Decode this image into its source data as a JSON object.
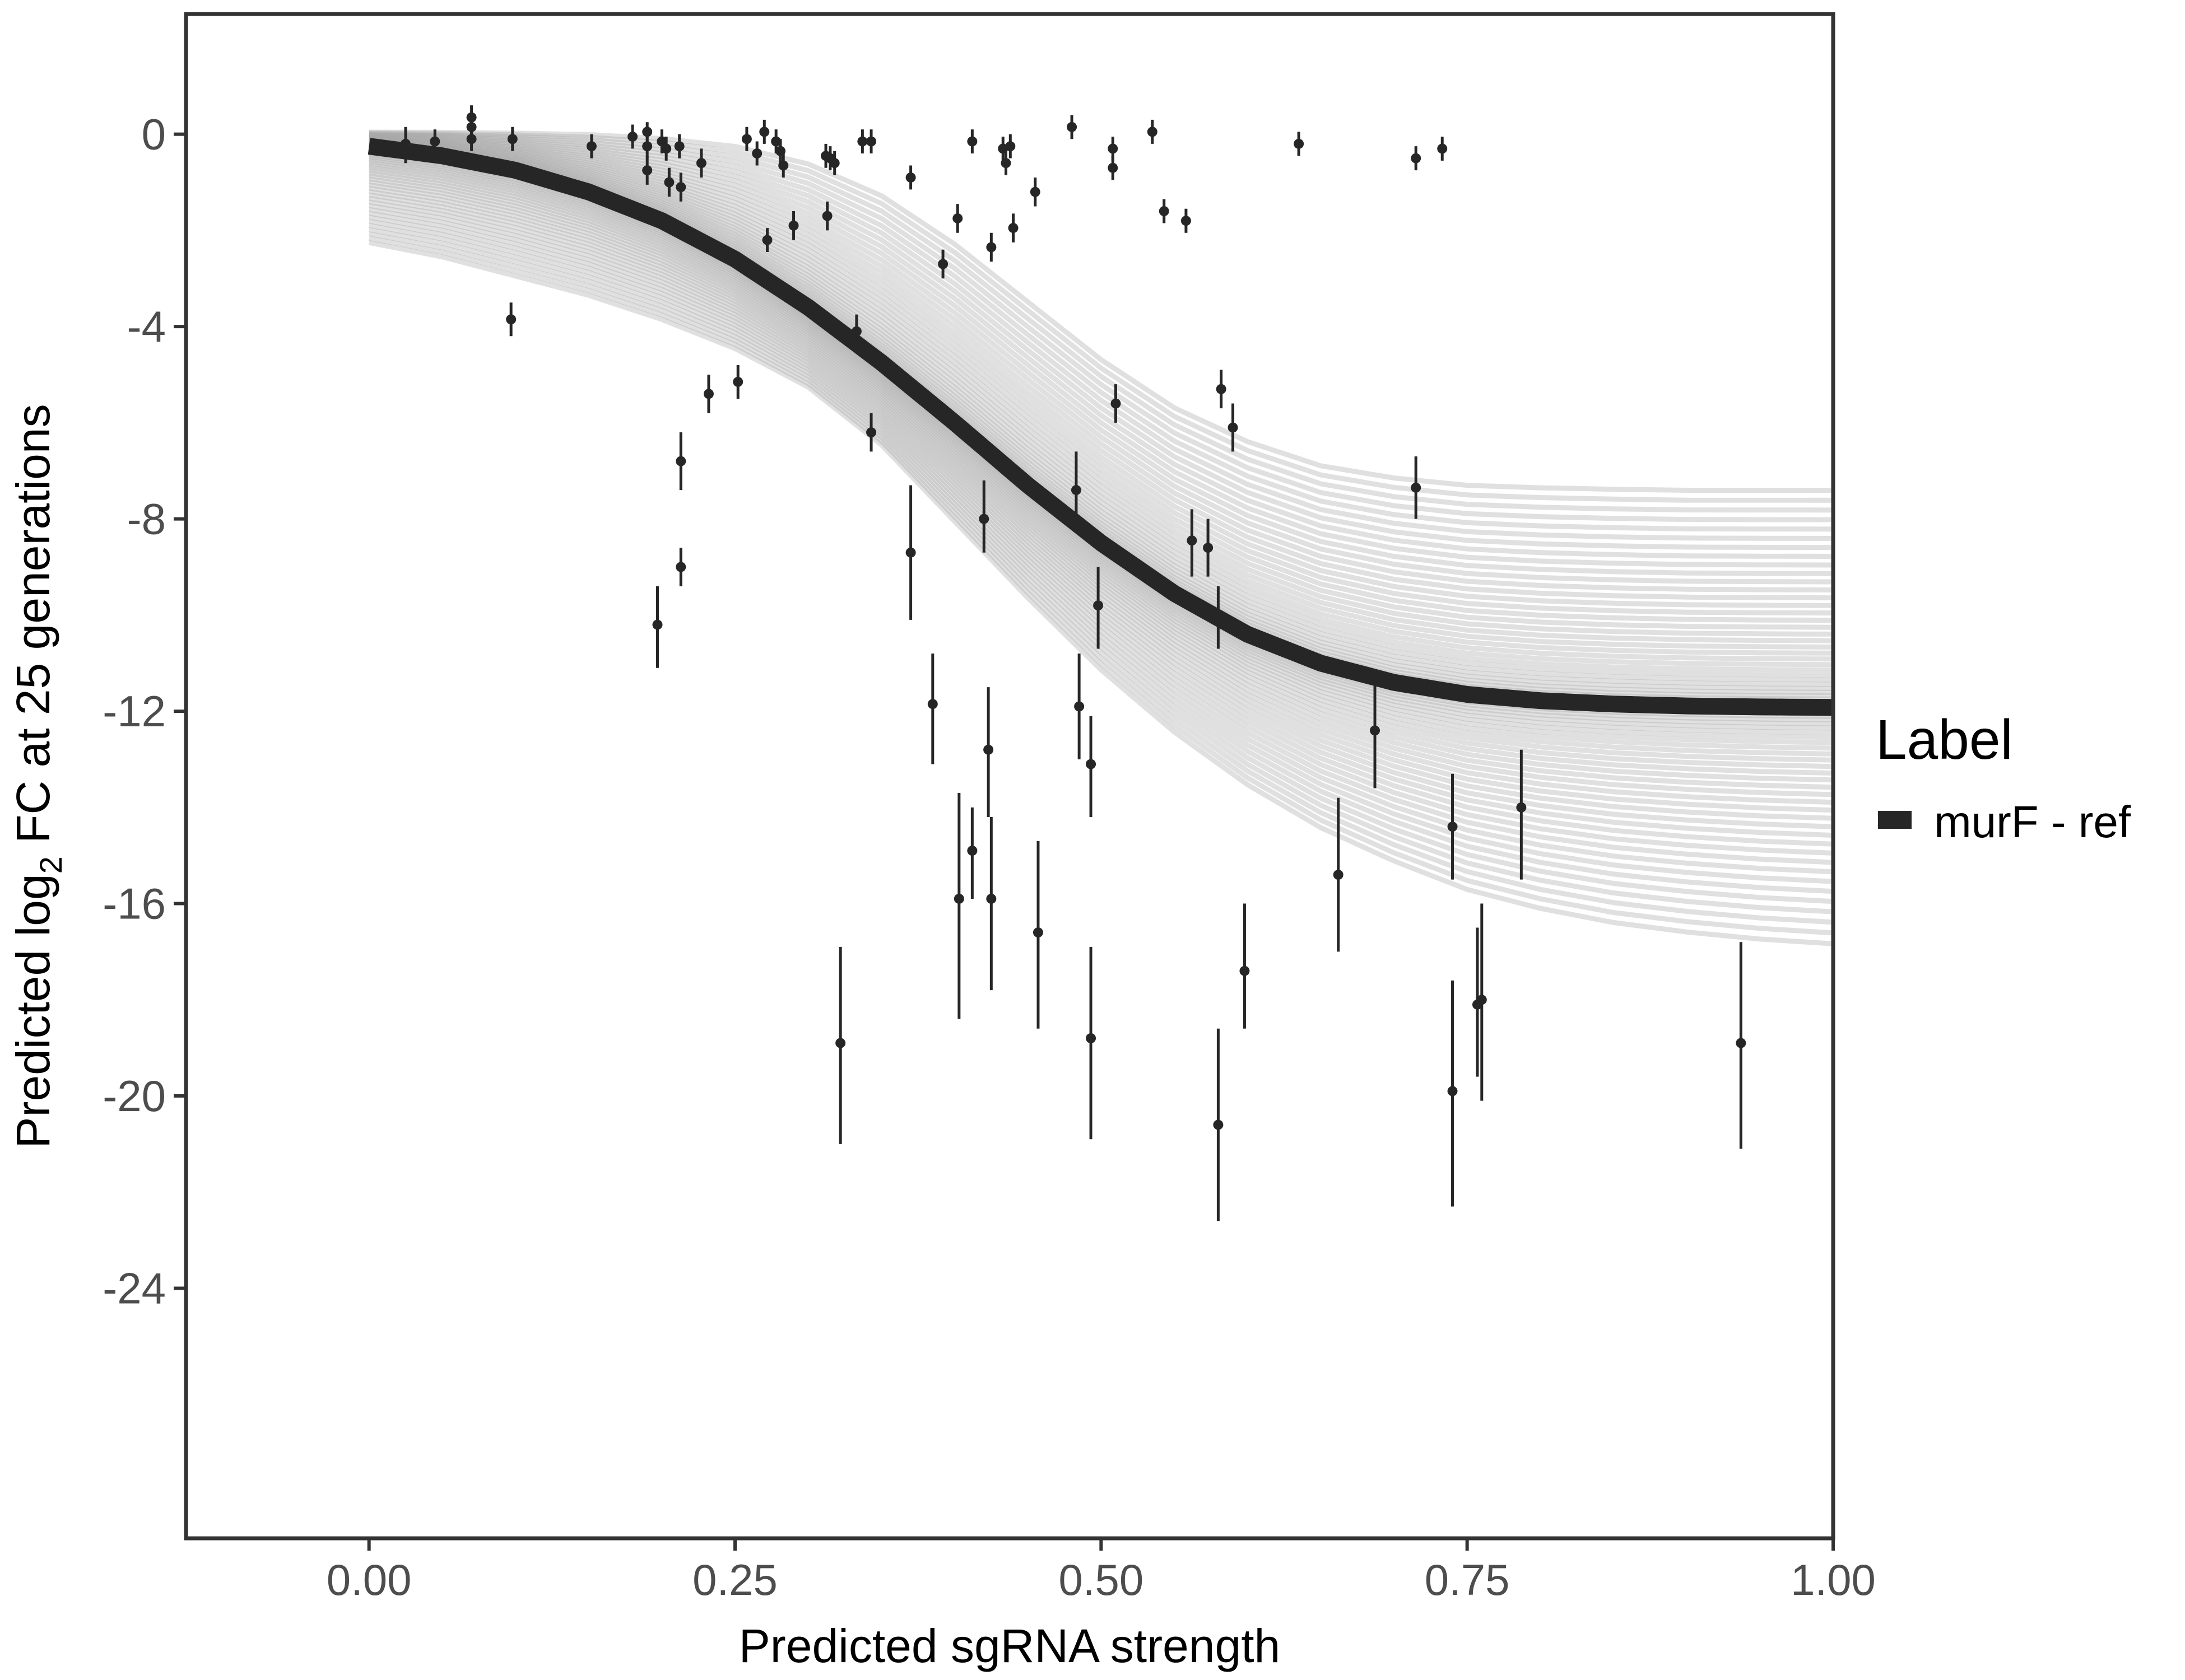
{
  "chart_data": {
    "type": "scatter",
    "xlabel": "Predicted sgRNA strength",
    "ylabel": {
      "prefix": "Predicted  log",
      "subscript": "2",
      "suffix": " FC at 25 generations"
    },
    "xlim": [
      -0.125,
      1.0
    ],
    "ylim": [
      -29.2,
      2.5
    ],
    "x_ticks": [
      0,
      0.25,
      0.5,
      0.75,
      1.0
    ],
    "x_tick_labels": [
      "0.00",
      "0.25",
      "0.50",
      "0.75",
      "1.00"
    ],
    "y_ticks": [
      0,
      -4,
      -8,
      -12,
      -16,
      -20,
      -24
    ],
    "y_tick_labels": [
      "0",
      "-4",
      "-8",
      "-12",
      "-16",
      "-20",
      "-24"
    ],
    "grid": false,
    "legend": {
      "title": "Label",
      "position": "right",
      "entries": [
        {
          "label": "murF - ref",
          "color": "#262626"
        }
      ]
    },
    "colors": {
      "fit": "#262626",
      "posterior": "#a6a6a6",
      "points": "#262626",
      "frame": "#333333"
    },
    "fit_curve": {
      "series": "murF - ref",
      "x": [
        0,
        0.05,
        0.1,
        0.15,
        0.2,
        0.25,
        0.3,
        0.35,
        0.4,
        0.45,
        0.5,
        0.55,
        0.6,
        0.65,
        0.7,
        0.75,
        0.8,
        0.85,
        0.9,
        0.95,
        1.0
      ],
      "y": [
        -0.25,
        -0.45,
        -0.75,
        -1.2,
        -1.8,
        -2.6,
        -3.6,
        -4.75,
        -6.0,
        -7.3,
        -8.5,
        -9.55,
        -10.4,
        -11.0,
        -11.4,
        -11.65,
        -11.78,
        -11.85,
        -11.89,
        -11.91,
        -11.92
      ]
    },
    "posterior_band": {
      "x": [
        0,
        0.05,
        0.1,
        0.15,
        0.2,
        0.25,
        0.3,
        0.35,
        0.4,
        0.45,
        0.5,
        0.55,
        0.6,
        0.65,
        0.7,
        0.75,
        0.8,
        0.85,
        0.9,
        0.95,
        1.0
      ],
      "upper": [
        0.05,
        0.05,
        0.04,
        0.02,
        -0.05,
        -0.2,
        -0.55,
        -1.2,
        -2.2,
        -3.4,
        -4.6,
        -5.6,
        -6.3,
        -6.8,
        -7.05,
        -7.2,
        -7.25,
        -7.28,
        -7.3,
        -7.3,
        -7.3
      ],
      "lower": [
        -2.3,
        -2.6,
        -3.0,
        -3.4,
        -3.9,
        -4.5,
        -5.3,
        -6.5,
        -8.1,
        -9.7,
        -11.2,
        -12.5,
        -13.6,
        -14.5,
        -15.2,
        -15.8,
        -16.2,
        -16.5,
        -16.7,
        -16.85,
        -16.95
      ]
    },
    "points": [
      {
        "x": 0.025,
        "y": -0.2,
        "lo": -0.6,
        "hi": 0.15
      },
      {
        "x": 0.045,
        "y": -0.15,
        "lo": -0.45,
        "hi": 0.1
      },
      {
        "x": 0.07,
        "y": 0.35,
        "lo": 0.05,
        "hi": 0.6
      },
      {
        "x": 0.07,
        "y": 0.15,
        "lo": -0.15,
        "hi": 0.4
      },
      {
        "x": 0.07,
        "y": -0.1,
        "lo": -0.35,
        "hi": 0.15
      },
      {
        "x": 0.098,
        "y": -0.1,
        "lo": -0.35,
        "hi": 0.15
      },
      {
        "x": 0.097,
        "y": -3.85,
        "lo": -4.2,
        "hi": -3.5
      },
      {
        "x": 0.152,
        "y": -0.25,
        "lo": -0.5,
        "hi": 0.0
      },
      {
        "x": 0.18,
        "y": -0.05,
        "lo": -0.3,
        "hi": 0.2
      },
      {
        "x": 0.19,
        "y": 0.05,
        "lo": -0.2,
        "hi": 0.25
      },
      {
        "x": 0.19,
        "y": -0.25,
        "lo": -0.5,
        "hi": 0.0
      },
      {
        "x": 0.19,
        "y": -0.75,
        "lo": -1.05,
        "hi": -0.45
      },
      {
        "x": 0.2,
        "y": -0.15,
        "lo": -0.4,
        "hi": 0.1
      },
      {
        "x": 0.203,
        "y": -0.3,
        "lo": -0.55,
        "hi": -0.05
      },
      {
        "x": 0.205,
        "y": -1.0,
        "lo": -1.3,
        "hi": -0.7
      },
      {
        "x": 0.212,
        "y": -0.25,
        "lo": -0.5,
        "hi": 0.0
      },
      {
        "x": 0.213,
        "y": -1.1,
        "lo": -1.4,
        "hi": -0.8
      },
      {
        "x": 0.227,
        "y": -0.6,
        "lo": -0.9,
        "hi": -0.3
      },
      {
        "x": 0.197,
        "y": -10.2,
        "lo": -11.1,
        "hi": -9.4
      },
      {
        "x": 0.213,
        "y": -6.8,
        "lo": -7.4,
        "hi": -6.2
      },
      {
        "x": 0.213,
        "y": -9.0,
        "lo": -9.4,
        "hi": -8.6
      },
      {
        "x": 0.232,
        "y": -5.4,
        "lo": -5.8,
        "hi": -5.0
      },
      {
        "x": 0.252,
        "y": -5.15,
        "lo": -5.5,
        "hi": -4.8
      },
      {
        "x": 0.258,
        "y": -0.1,
        "lo": -0.35,
        "hi": 0.15
      },
      {
        "x": 0.265,
        "y": -0.4,
        "lo": -0.65,
        "hi": -0.15
      },
      {
        "x": 0.27,
        "y": 0.05,
        "lo": -0.2,
        "hi": 0.3
      },
      {
        "x": 0.272,
        "y": -2.2,
        "lo": -2.45,
        "hi": -1.95
      },
      {
        "x": 0.278,
        "y": -0.15,
        "lo": -0.4,
        "hi": 0.1
      },
      {
        "x": 0.281,
        "y": -0.35,
        "lo": -0.6,
        "hi": -0.1
      },
      {
        "x": 0.283,
        "y": -0.65,
        "lo": -0.9,
        "hi": -0.4
      },
      {
        "x": 0.29,
        "y": -1.9,
        "lo": -2.2,
        "hi": -1.6
      },
      {
        "x": 0.312,
        "y": -0.45,
        "lo": -0.7,
        "hi": -0.2
      },
      {
        "x": 0.315,
        "y": -0.5,
        "lo": -0.75,
        "hi": -0.25
      },
      {
        "x": 0.318,
        "y": -0.6,
        "lo": -0.85,
        "hi": -0.35
      },
      {
        "x": 0.313,
        "y": -1.7,
        "lo": -2.0,
        "hi": -1.4
      },
      {
        "x": 0.322,
        "y": -18.9,
        "lo": -21.0,
        "hi": -16.9
      },
      {
        "x": 0.333,
        "y": -4.1,
        "lo": -4.45,
        "hi": -3.75
      },
      {
        "x": 0.337,
        "y": -0.15,
        "lo": -0.4,
        "hi": 0.1
      },
      {
        "x": 0.343,
        "y": -0.15,
        "lo": -0.4,
        "hi": 0.1
      },
      {
        "x": 0.343,
        "y": -6.2,
        "lo": -6.6,
        "hi": -5.8
      },
      {
        "x": 0.37,
        "y": -0.9,
        "lo": -1.15,
        "hi": -0.65
      },
      {
        "x": 0.37,
        "y": -8.7,
        "lo": -10.1,
        "hi": -7.3
      },
      {
        "x": 0.385,
        "y": -11.85,
        "lo": -13.1,
        "hi": -10.8
      },
      {
        "x": 0.392,
        "y": -2.7,
        "lo": -3.0,
        "hi": -2.4
      },
      {
        "x": 0.402,
        "y": -1.75,
        "lo": -2.05,
        "hi": -1.45
      },
      {
        "x": 0.403,
        "y": -15.9,
        "lo": -18.4,
        "hi": -13.7
      },
      {
        "x": 0.412,
        "y": -0.15,
        "lo": -0.4,
        "hi": 0.1
      },
      {
        "x": 0.412,
        "y": -14.9,
        "lo": -15.9,
        "hi": -14.0
      },
      {
        "x": 0.42,
        "y": -8.0,
        "lo": -8.7,
        "hi": -7.2
      },
      {
        "x": 0.423,
        "y": -12.8,
        "lo": -14.2,
        "hi": -11.5
      },
      {
        "x": 0.425,
        "y": -2.35,
        "lo": -2.65,
        "hi": -2.05
      },
      {
        "x": 0.425,
        "y": -15.9,
        "lo": -17.8,
        "hi": -14.2
      },
      {
        "x": 0.433,
        "y": -0.3,
        "lo": -0.55,
        "hi": -0.05
      },
      {
        "x": 0.435,
        "y": -0.6,
        "lo": -0.85,
        "hi": -0.35
      },
      {
        "x": 0.438,
        "y": -0.25,
        "lo": -0.5,
        "hi": 0.0
      },
      {
        "x": 0.44,
        "y": -1.95,
        "lo": -2.25,
        "hi": -1.65
      },
      {
        "x": 0.455,
        "y": -1.2,
        "lo": -1.5,
        "hi": -0.9
      },
      {
        "x": 0.457,
        "y": -16.6,
        "lo": -18.6,
        "hi": -14.7
      },
      {
        "x": 0.48,
        "y": 0.15,
        "lo": -0.1,
        "hi": 0.4
      },
      {
        "x": 0.483,
        "y": -7.4,
        "lo": -8.2,
        "hi": -6.6
      },
      {
        "x": 0.485,
        "y": -11.9,
        "lo": -13.0,
        "hi": -10.8
      },
      {
        "x": 0.493,
        "y": -13.1,
        "lo": -14.2,
        "hi": -12.1
      },
      {
        "x": 0.493,
        "y": -18.8,
        "lo": -20.9,
        "hi": -16.9
      },
      {
        "x": 0.498,
        "y": -9.8,
        "lo": -10.7,
        "hi": -9.0
      },
      {
        "x": 0.508,
        "y": -0.3,
        "lo": -0.55,
        "hi": -0.05
      },
      {
        "x": 0.508,
        "y": -0.7,
        "lo": -0.95,
        "hi": -0.45
      },
      {
        "x": 0.51,
        "y": -5.6,
        "lo": -6.0,
        "hi": -5.2
      },
      {
        "x": 0.535,
        "y": 0.05,
        "lo": -0.2,
        "hi": 0.3
      },
      {
        "x": 0.543,
        "y": -1.6,
        "lo": -1.85,
        "hi": -1.35
      },
      {
        "x": 0.558,
        "y": -1.8,
        "lo": -2.05,
        "hi": -1.55
      },
      {
        "x": 0.562,
        "y": -8.45,
        "lo": -9.2,
        "hi": -7.8
      },
      {
        "x": 0.573,
        "y": -8.6,
        "lo": -9.2,
        "hi": -8.0
      },
      {
        "x": 0.58,
        "y": -10.0,
        "lo": -10.7,
        "hi": -9.4
      },
      {
        "x": 0.58,
        "y": -20.6,
        "lo": -22.6,
        "hi": -18.6
      },
      {
        "x": 0.582,
        "y": -5.3,
        "lo": -5.7,
        "hi": -4.9
      },
      {
        "x": 0.59,
        "y": -6.1,
        "lo": -6.6,
        "hi": -5.6
      },
      {
        "x": 0.598,
        "y": -17.4,
        "lo": -18.6,
        "hi": -16.0
      },
      {
        "x": 0.635,
        "y": -0.2,
        "lo": -0.45,
        "hi": 0.05
      },
      {
        "x": 0.662,
        "y": -15.4,
        "lo": -17.0,
        "hi": -13.8
      },
      {
        "x": 0.687,
        "y": -12.4,
        "lo": -13.6,
        "hi": -11.3
      },
      {
        "x": 0.715,
        "y": -0.5,
        "lo": -0.75,
        "hi": -0.25
      },
      {
        "x": 0.715,
        "y": -7.35,
        "lo": -8.0,
        "hi": -6.7
      },
      {
        "x": 0.733,
        "y": -0.3,
        "lo": -0.55,
        "hi": -0.05
      },
      {
        "x": 0.74,
        "y": -14.4,
        "lo": -15.5,
        "hi": -13.3
      },
      {
        "x": 0.74,
        "y": -19.9,
        "lo": -22.3,
        "hi": -17.6
      },
      {
        "x": 0.757,
        "y": -18.1,
        "lo": -19.6,
        "hi": -16.5
      },
      {
        "x": 0.76,
        "y": -18.0,
        "lo": -20.1,
        "hi": -16.0
      },
      {
        "x": 0.787,
        "y": -14.0,
        "lo": -15.5,
        "hi": -12.8
      },
      {
        "x": 0.937,
        "y": -18.9,
        "lo": -21.1,
        "hi": -16.8
      }
    ]
  }
}
